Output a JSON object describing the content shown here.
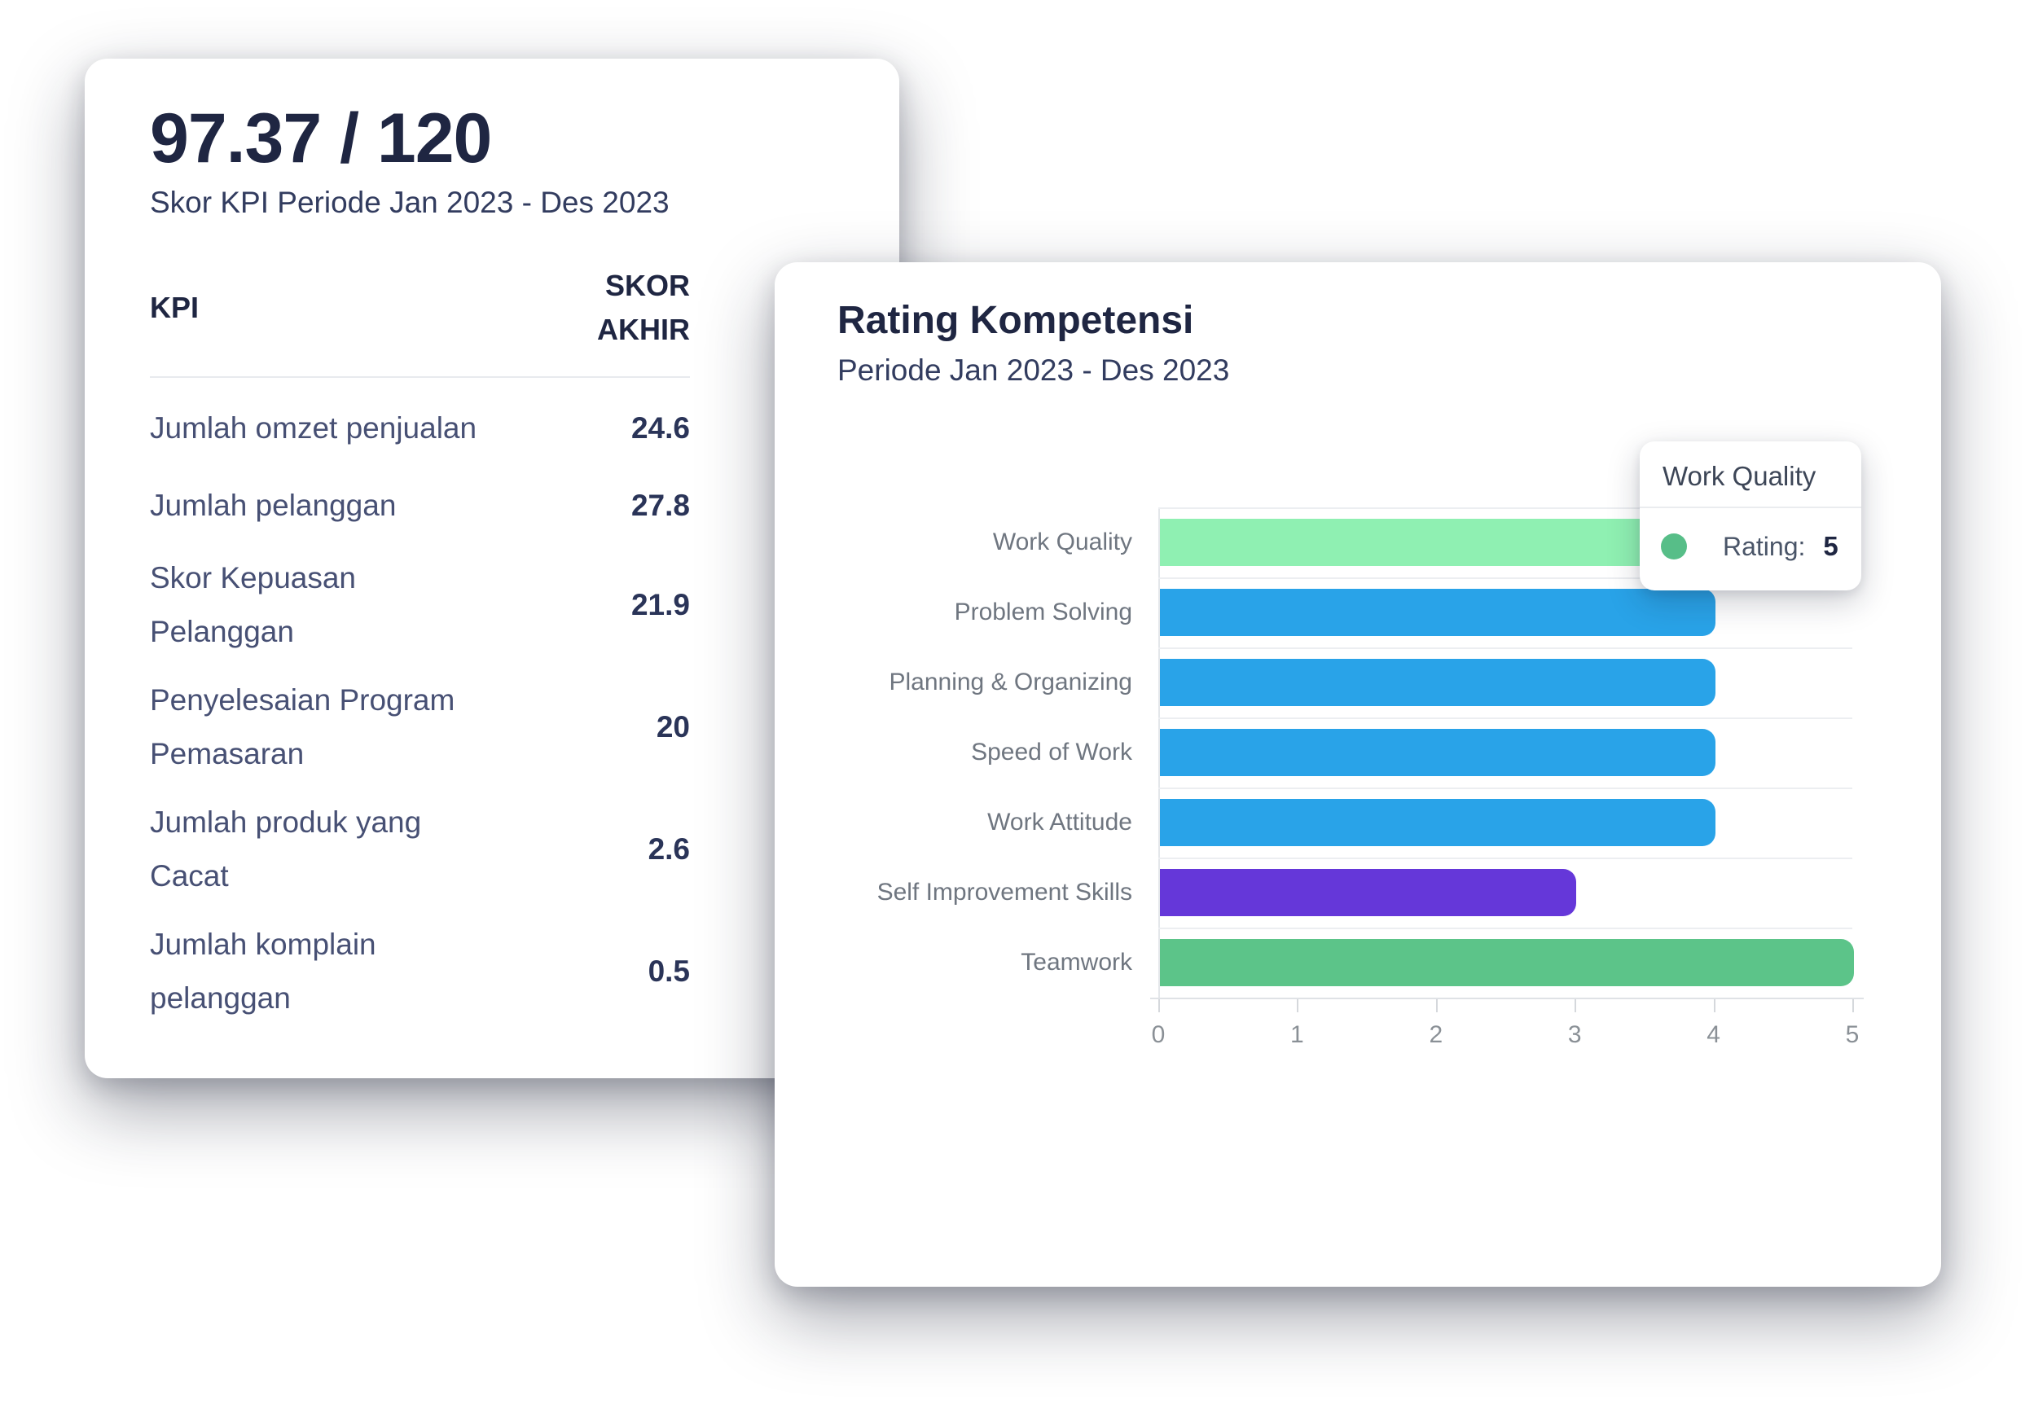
{
  "kpi_card": {
    "score": "97.37 / 120",
    "subtitle": "Skor KPI Periode Jan 2023 - Des 2023",
    "table": {
      "col_kpi": "KPI",
      "col_score": "SKOR\nAKHIR",
      "rows": [
        {
          "label": "Jumlah omzet penjualan",
          "value": "24.6"
        },
        {
          "label": "Jumlah pelanggan",
          "value": "27.8"
        },
        {
          "label": "Skor Kepuasan\nPelanggan",
          "value": "21.9"
        },
        {
          "label": "Penyelesaian Program\nPemasaran",
          "value": "20"
        },
        {
          "label": "Jumlah produk yang\nCacat",
          "value": "2.6"
        },
        {
          "label": "Jumlah komplain\npelanggan",
          "value": "0.5"
        }
      ]
    }
  },
  "rating_card": {
    "title": "Rating Kompetensi",
    "subtitle": "Periode Jan 2023 - Des 2023",
    "tooltip": {
      "title": "Work Quality",
      "label": "Rating:",
      "value": "5",
      "marker_color": "#57BE88"
    }
  },
  "chart_data": {
    "type": "bar",
    "orientation": "horizontal",
    "title": "Rating Kompetensi",
    "subtitle": "Periode Jan 2023 - Des 2023",
    "categories": [
      "Work Quality",
      "Problem Solving",
      "Planning & Organizing",
      "Speed of Work",
      "Work Attitude",
      "Self Improvement Skills",
      "Teamwork"
    ],
    "values": [
      5,
      4,
      4,
      4,
      4,
      3,
      5
    ],
    "bar_colors": [
      "#8FF0B2",
      "#29A3E8",
      "#29A3E8",
      "#29A3E8",
      "#29A3E8",
      "#6537D9",
      "#5CC489"
    ],
    "xlim": [
      0,
      5
    ],
    "xticks": [
      "0",
      "1",
      "2",
      "3",
      "4",
      "5"
    ],
    "xlabel": "",
    "ylabel": "",
    "grid": "category-separators-only",
    "legend": "none"
  },
  "colors": {
    "navy": "#1F2642",
    "separator": "#ECEEF1",
    "axis": "#DFE2E6"
  }
}
